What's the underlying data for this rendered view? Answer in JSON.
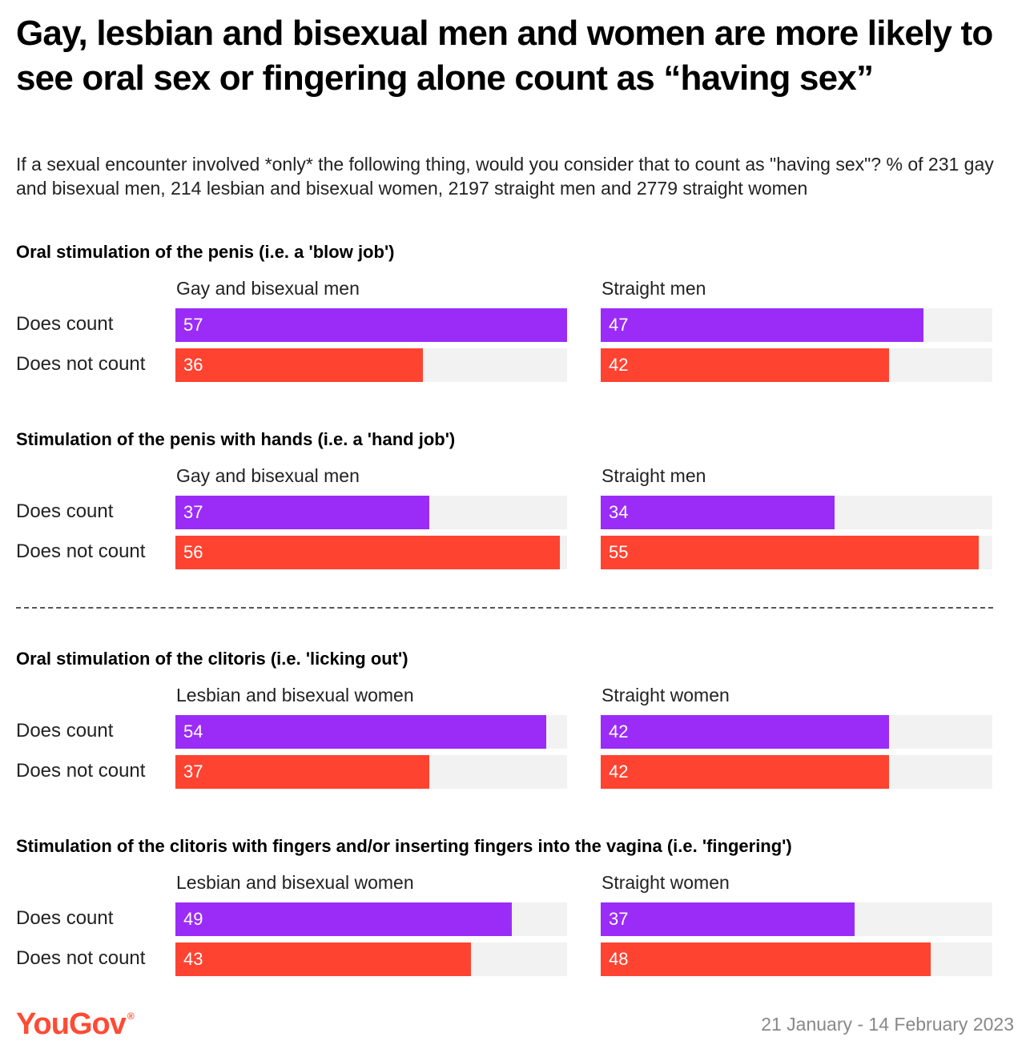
{
  "title": "Gay, lesbian and bisexual men and women are more likely to see oral sex or fingering alone count as “having sex”",
  "subtitle": "If a sexual encounter involved *only* the following thing, would you consider that to count as \"having sex\"? % of 231 gay and bisexual men, 214 lesbian and bisexual women, 2197 straight men and 2779 straight women",
  "colors": {
    "does_count": "#9b2cf7",
    "does_not_count": "#ff4331",
    "track": "#f2f2f2",
    "brand": "#ff4b34"
  },
  "footer": {
    "logo_text": "YouGov",
    "logo_mark": "®",
    "date": "21 January - 14 February 2023"
  },
  "chart_data": {
    "type": "bar",
    "orientation": "horizontal",
    "xlim": [
      0,
      57
    ],
    "categories": [
      "Does count",
      "Does not count"
    ],
    "sections": [
      {
        "title": "Oral stimulation of the penis (i.e. a 'blow job')",
        "groups": [
          {
            "name": "Gay and bisexual men",
            "values": [
              57,
              36
            ]
          },
          {
            "name": "Straight men",
            "values": [
              47,
              42
            ]
          }
        ]
      },
      {
        "title": "Stimulation of the penis with hands (i.e. a 'hand job')",
        "groups": [
          {
            "name": "Gay and bisexual men",
            "values": [
              37,
              56
            ]
          },
          {
            "name": "Straight men",
            "values": [
              34,
              55
            ]
          }
        ]
      },
      {
        "title": "Oral stimulation of the clitoris (i.e. 'licking out')",
        "groups": [
          {
            "name": "Lesbian and bisexual women",
            "values": [
              54,
              37
            ]
          },
          {
            "name": "Straight women",
            "values": [
              42,
              42
            ]
          }
        ]
      },
      {
        "title": "Stimulation of the clitoris with fingers and/or inserting fingers into the vagina (i.e. 'fingering')",
        "groups": [
          {
            "name": "Lesbian and bisexual women",
            "values": [
              49,
              43
            ]
          },
          {
            "name": "Straight women",
            "values": [
              37,
              48
            ]
          }
        ]
      }
    ]
  }
}
